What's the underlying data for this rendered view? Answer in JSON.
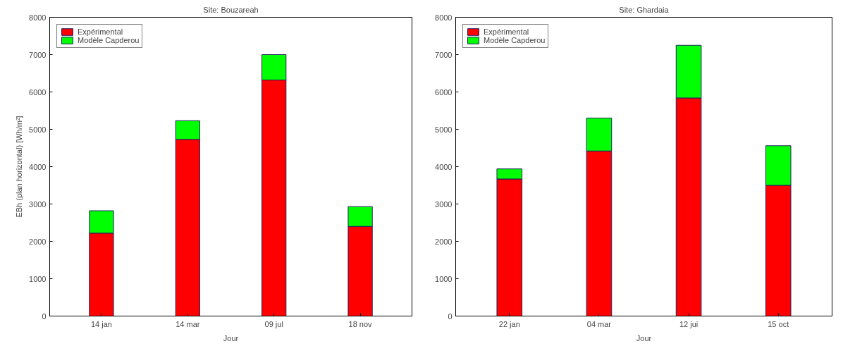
{
  "chart_data": [
    {
      "type": "bar",
      "stacked": true,
      "title": "Site: Bouzareah",
      "xlabel": "Jour",
      "ylabel": "EBh (plan horizontal) [Wh/m²]",
      "categories": [
        "14 jan",
        "14 mar",
        "09 jul",
        "18 nov"
      ],
      "series": [
        {
          "name": "Expérimental",
          "color": "#ff0000",
          "values": [
            2220,
            4730,
            6320,
            2400
          ]
        },
        {
          "name": "Modèle Capderou",
          "color": "#00ff00",
          "values": [
            600,
            500,
            680,
            530
          ]
        }
      ],
      "ylim": [
        0,
        8000
      ],
      "yticks": [
        0,
        1000,
        2000,
        3000,
        4000,
        5000,
        6000,
        7000,
        8000
      ],
      "grid": false,
      "legend": "top left"
    },
    {
      "type": "bar",
      "stacked": true,
      "title": "Site: Ghardaia",
      "xlabel": "Jour",
      "categories": [
        "22 jan",
        "04 mar",
        "12 jui",
        "15 oct"
      ],
      "series": [
        {
          "name": "Expérimental",
          "color": "#ff0000",
          "values": [
            3670,
            4420,
            5840,
            3500
          ]
        },
        {
          "name": "Modèle Capderou",
          "color": "#00ff00",
          "values": [
            270,
            880,
            1410,
            1060
          ]
        }
      ],
      "ylim": [
        0,
        8000
      ],
      "yticks": [
        0,
        1000,
        2000,
        3000,
        4000,
        5000,
        6000,
        7000,
        8000
      ],
      "grid": false,
      "legend": "top left"
    }
  ]
}
